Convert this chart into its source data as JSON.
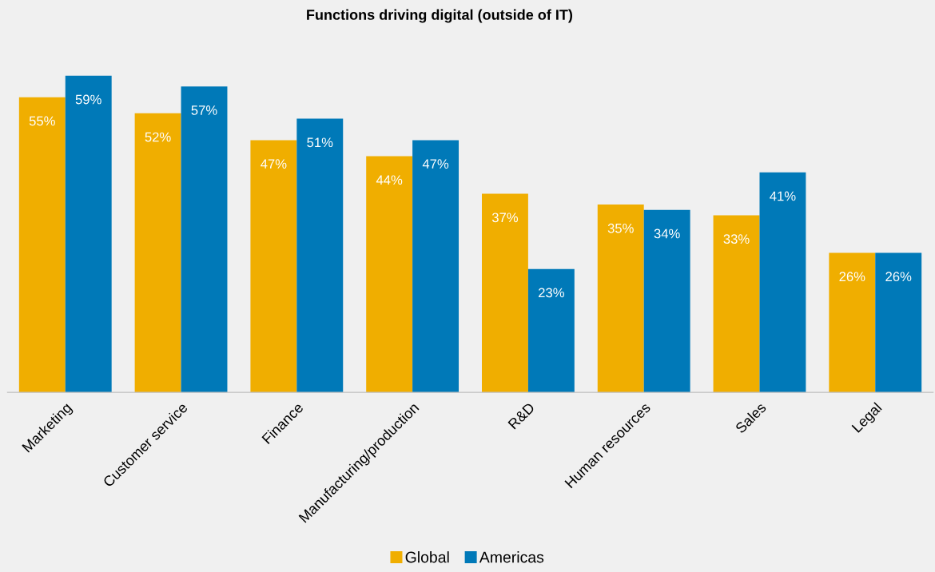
{
  "chart_data": {
    "type": "bar",
    "title": "Functions driving digital (outside of IT)",
    "categories": [
      "Marketing",
      "Customer service",
      "Finance",
      "Manufacturing/production",
      "R&D",
      "Human resources",
      "Sales",
      "Legal"
    ],
    "series": [
      {
        "name": "Global",
        "color": "#f0ae00",
        "values": [
          55,
          52,
          47,
          44,
          37,
          35,
          33,
          26
        ],
        "value_labels": [
          "55%",
          "52%",
          "47%",
          "44%",
          "37%",
          "35%",
          "33%",
          "26%"
        ]
      },
      {
        "name": "Americas",
        "color": "#0079b8",
        "values": [
          59,
          57,
          51,
          47,
          23,
          34,
          41,
          26
        ],
        "value_labels": [
          "59%",
          "57%",
          "51%",
          "47%",
          "23%",
          "34%",
          "41%",
          "26%"
        ]
      }
    ],
    "legend": "bottom",
    "tick_labels": "x"
  }
}
